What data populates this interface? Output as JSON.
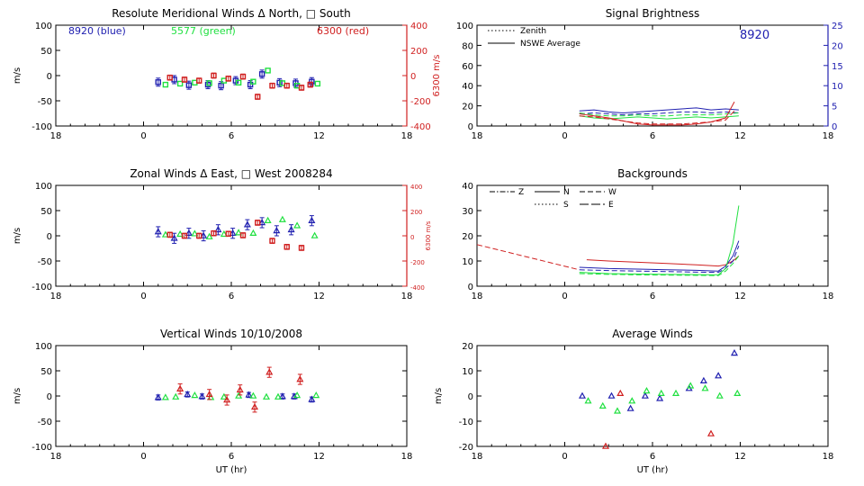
{
  "colors": {
    "blue": "#2020b0",
    "green": "#20e040",
    "red": "#d02020",
    "axis": "#000000"
  },
  "chart_data": [
    {
      "id": "meridional",
      "type": "scatter",
      "title": "Resolute Meridional Winds Δ North, □ South",
      "ylabel": "m/s",
      "y2label": "6300 m/s",
      "xlabel": "",
      "xlim": [
        -6,
        18
      ],
      "ylim": [
        -100,
        100
      ],
      "y2lim": [
        -400,
        400
      ],
      "xticks": [
        "18",
        "0",
        "6",
        "12",
        "18"
      ],
      "yticks": [
        "100",
        "50",
        "0",
        "-50",
        "-100"
      ],
      "y2ticks": [
        "400",
        "200",
        "0",
        "-200",
        "-400"
      ],
      "annotations": [
        {
          "text": "8920 (blue)",
          "color": "blue"
        },
        {
          "text": "5577 (green)",
          "color": "green"
        },
        {
          "text": "6300 (red)",
          "color": "red"
        }
      ],
      "series": [
        {
          "name": "8920 (blue)",
          "color": "blue",
          "marker": "square",
          "err": 8,
          "x": [
            1.0,
            2.1,
            3.1,
            4.4,
            5.3,
            6.3,
            7.3,
            8.1,
            9.3,
            10.4,
            11.5
          ],
          "y": [
            -13,
            -8,
            -19,
            -18,
            -20,
            -10,
            -18,
            3,
            -14,
            -15,
            -12
          ]
        },
        {
          "name": "5577 (green)",
          "color": "green",
          "marker": "square",
          "err": 0,
          "x": [
            1.5,
            2.5,
            3.5,
            4.5,
            5.5,
            6.5,
            7.5,
            8.5,
            9.5,
            10.5,
            11.9
          ],
          "y": [
            -18,
            -16,
            -14,
            -15,
            -10,
            -14,
            -12,
            10,
            -15,
            -20,
            -16
          ]
        },
        {
          "name": "6300 (red)",
          "color": "red",
          "marker": "square",
          "err": 5,
          "x": [
            1.8,
            2.8,
            3.8,
            4.8,
            5.8,
            6.8,
            7.8,
            8.8,
            9.8,
            10.8,
            11.4
          ],
          "y": [
            -4,
            -8,
            -10,
            0,
            -6,
            -2,
            -42,
            -20,
            -20,
            -24,
            -18
          ]
        }
      ]
    },
    {
      "id": "brightness",
      "type": "line",
      "title": "Signal Brightness",
      "ylabel": "",
      "y2label": "",
      "xlabel": "",
      "xlim": [
        -6,
        18
      ],
      "ylim": [
        0,
        100
      ],
      "y2lim": [
        0,
        25
      ],
      "xticks": [
        "18",
        "0",
        "6",
        "12",
        "18"
      ],
      "yticks": [
        "100",
        "80",
        "60",
        "40",
        "20",
        "0"
      ],
      "y2ticks": [
        "25",
        "20",
        "15",
        "10",
        "5",
        "0"
      ],
      "annotations": [
        {
          "text": "8920",
          "color": "blue"
        }
      ],
      "legend": [
        {
          "label": "Zenith",
          "style": "dotted"
        },
        {
          "label": "NSWE Average",
          "style": "solid"
        }
      ],
      "series": [
        {
          "name": "8920",
          "color": "blue",
          "style": "solid",
          "x": [
            1,
            2,
            3,
            4,
            5,
            6,
            7,
            8,
            9,
            10,
            11,
            11.9
          ],
          "y": [
            15,
            16,
            14,
            13,
            14,
            15,
            16,
            17,
            18,
            16,
            17,
            16
          ]
        },
        {
          "name": "",
          "color": "blue",
          "style": "dashed",
          "x": [
            1,
            2,
            3,
            4,
            5,
            6,
            7,
            8,
            9,
            10,
            11,
            11.9
          ],
          "y": [
            12,
            13,
            12,
            11,
            12,
            12,
            13,
            14,
            14,
            13,
            14,
            13
          ]
        },
        {
          "name": "",
          "color": "green",
          "style": "solid",
          "x": [
            1,
            2,
            3,
            4,
            5,
            6,
            7,
            8,
            9,
            10,
            11,
            11.9
          ],
          "y": [
            10,
            8,
            7,
            8,
            9,
            8,
            7,
            8,
            9,
            8,
            9,
            10
          ]
        },
        {
          "name": "",
          "color": "green",
          "style": "dashed",
          "x": [
            1,
            2,
            3,
            4,
            5,
            6,
            7,
            8,
            9,
            10,
            11,
            11.9
          ],
          "y": [
            13,
            11,
            10,
            10,
            11,
            10,
            10,
            11,
            11,
            11,
            12,
            13
          ]
        },
        {
          "name": "",
          "color": "red",
          "style": "solid",
          "x": [
            1,
            2,
            3,
            4,
            5,
            6,
            7,
            8,
            9,
            10,
            11,
            11.6
          ],
          "y": [
            12,
            10,
            8,
            5,
            2,
            1,
            1,
            1,
            2,
            4,
            8,
            24
          ]
        },
        {
          "name": "",
          "color": "red",
          "style": "dashed",
          "x": [
            1,
            2,
            3,
            4,
            5,
            6,
            7,
            8,
            9,
            10,
            11,
            11.6
          ],
          "y": [
            10,
            9,
            7,
            5,
            3,
            2,
            2,
            2,
            3,
            4,
            6,
            15
          ]
        }
      ]
    },
    {
      "id": "zonal",
      "type": "scatter",
      "title": "Zonal Winds Δ East, □ West 2008284",
      "ylabel": "m/s",
      "y2label": "6300 m/s",
      "xlabel": "",
      "xlim": [
        -6,
        18
      ],
      "ylim": [
        -100,
        100
      ],
      "y2lim": [
        -400,
        400
      ],
      "xticks": [
        "18",
        "0",
        "6",
        "12",
        "18"
      ],
      "yticks": [
        "100",
        "50",
        "0",
        "-50",
        "-100"
      ],
      "y2ticks": [
        "400",
        "200",
        "0",
        "-200",
        "-400"
      ],
      "annotations": [],
      "series": [
        {
          "name": "",
          "color": "blue",
          "marker": "triangle",
          "err": 10,
          "x": [
            1.0,
            2.1,
            3.1,
            4.1,
            5.1,
            6.1,
            7.1,
            8.1,
            9.1,
            10.1,
            11.5
          ],
          "y": [
            8,
            -5,
            5,
            0,
            12,
            5,
            22,
            26,
            10,
            12,
            30
          ]
        },
        {
          "name": "",
          "color": "green",
          "marker": "triangle",
          "err": 0,
          "x": [
            1.5,
            2.5,
            3.5,
            4.5,
            5.5,
            6.5,
            7.5,
            8.5,
            9.5,
            10.5,
            11.7
          ],
          "y": [
            2,
            3,
            4,
            -2,
            3,
            6,
            5,
            30,
            32,
            20,
            0
          ]
        },
        {
          "name": "",
          "color": "red",
          "marker": "square",
          "err": 5,
          "x": [
            1.8,
            2.8,
            3.8,
            4.8,
            5.8,
            6.8,
            7.8,
            8.8,
            9.8,
            10.8
          ],
          "y": [
            2,
            0,
            0,
            5,
            4,
            1,
            26,
            -10,
            -22,
            -24
          ]
        }
      ]
    },
    {
      "id": "backgrounds",
      "type": "line",
      "title": "Backgrounds",
      "ylabel": "",
      "y2label": "",
      "xlabel": "",
      "xlim": [
        -6,
        18
      ],
      "ylim": [
        0,
        40
      ],
      "y2lim": null,
      "xticks": [
        "18",
        "0",
        "6",
        "12",
        "18"
      ],
      "yticks": [
        "40",
        "30",
        "20",
        "10",
        "0"
      ],
      "y2ticks": [],
      "annotations": [],
      "legend": [
        {
          "label": "Z",
          "style": "dashdot"
        },
        {
          "label": "N",
          "style": "solid"
        },
        {
          "label": "W",
          "style": "dashed"
        },
        {
          "label": "S",
          "style": "dotted"
        },
        {
          "label": "E",
          "style": "longdash"
        }
      ],
      "series": [
        {
          "name": "",
          "color": "red",
          "style": "dashed",
          "x": [
            -6,
            1
          ],
          "y": [
            16.5,
            6.5
          ]
        },
        {
          "name": "",
          "color": "red",
          "style": "solid",
          "x": [
            1.5,
            3,
            5,
            7,
            9,
            10.5,
            11,
            11.5,
            11.9
          ],
          "y": [
            10.5,
            10,
            9.5,
            9,
            8.5,
            8,
            8.5,
            10,
            12
          ]
        },
        {
          "name": "",
          "color": "blue",
          "style": "solid",
          "x": [
            1,
            3,
            5,
            7,
            9,
            10.5,
            11,
            11.5,
            11.9
          ],
          "y": [
            7.5,
            7,
            6.8,
            6.5,
            6.3,
            6,
            8,
            12,
            18
          ]
        },
        {
          "name": "",
          "color": "blue",
          "style": "dashed",
          "x": [
            1,
            3,
            5,
            7,
            9,
            10.5,
            11,
            11.5,
            11.9
          ],
          "y": [
            6.5,
            6.2,
            6,
            5.8,
            5.6,
            5.5,
            7,
            10,
            16
          ]
        },
        {
          "name": "",
          "color": "green",
          "style": "solid",
          "x": [
            1,
            3,
            5,
            7,
            9,
            10.5,
            11,
            11.5,
            11.9
          ],
          "y": [
            5.5,
            5,
            4.8,
            4.7,
            4.6,
            4.5,
            7,
            17,
            32
          ]
        },
        {
          "name": "",
          "color": "green",
          "style": "dashed",
          "x": [
            1,
            3,
            5,
            7,
            9,
            10.5,
            11,
            11.5,
            11.9
          ],
          "y": [
            5,
            4.7,
            4.5,
            4.4,
            4.3,
            4.2,
            6,
            9,
            12
          ]
        }
      ]
    },
    {
      "id": "vertical",
      "type": "scatter",
      "title": "Vertical Winds 10/10/2008",
      "ylabel": "m/s",
      "y2label": "",
      "xlabel": "UT (hr)",
      "xlim": [
        -6,
        18
      ],
      "ylim": [
        -100,
        100
      ],
      "y2lim": null,
      "xticks": [
        "18",
        "0",
        "6",
        "12",
        "18"
      ],
      "yticks": [
        "100",
        "50",
        "0",
        "-50",
        "-100"
      ],
      "y2ticks": [],
      "annotations": [],
      "series": [
        {
          "name": "",
          "color": "blue",
          "marker": "triangle",
          "err": 5,
          "x": [
            1.0,
            3.0,
            4.0,
            7.2,
            9.5,
            10.3,
            11.5
          ],
          "y": [
            -3,
            3,
            -1,
            2,
            -1,
            -1,
            -7
          ]
        },
        {
          "name": "",
          "color": "green",
          "marker": "triangle",
          "err": 0,
          "x": [
            1.5,
            2.2,
            3.5,
            4.6,
            5.5,
            6.5,
            7.5,
            8.4,
            9.2,
            10.5,
            11.8
          ],
          "y": [
            -3,
            -2,
            1,
            -3,
            -2,
            0,
            0,
            -2,
            -2,
            1,
            1
          ]
        },
        {
          "name": "",
          "color": "red",
          "marker": "triangle",
          "err": 10,
          "x": [
            2.5,
            4.5,
            5.7,
            6.6,
            7.6,
            8.6,
            10.7
          ],
          "y": [
            14,
            3,
            -8,
            12,
            -22,
            47,
            33
          ]
        }
      ]
    },
    {
      "id": "average",
      "type": "scatter",
      "title": "Average Winds",
      "ylabel": "m/s",
      "y2label": "",
      "xlabel": "UT (hr)",
      "xlim": [
        -6,
        18
      ],
      "ylim": [
        -20,
        20
      ],
      "y2lim": null,
      "xticks": [
        "18",
        "0",
        "6",
        "12",
        "18"
      ],
      "yticks": [
        "20",
        "10",
        "0",
        "-10",
        "-20"
      ],
      "y2ticks": [],
      "annotations": [],
      "series": [
        {
          "name": "",
          "color": "blue",
          "marker": "triangle",
          "err": 0,
          "x": [
            1.2,
            3.2,
            4.5,
            5.5,
            6.5,
            8.5,
            9.5,
            10.5,
            11.6
          ],
          "y": [
            0,
            0,
            -5,
            0,
            -1,
            3,
            6,
            8,
            17
          ]
        },
        {
          "name": "",
          "color": "green",
          "marker": "triangle",
          "err": 0,
          "x": [
            1.6,
            2.6,
            3.6,
            4.6,
            5.6,
            6.6,
            7.6,
            8.6,
            9.6,
            10.6,
            11.8
          ],
          "y": [
            -2,
            -4,
            -6,
            -2,
            2,
            1,
            1,
            4,
            3,
            0,
            1
          ]
        },
        {
          "name": "",
          "color": "red",
          "marker": "triangle",
          "err": 0,
          "x": [
            2.8,
            3.8,
            10.0
          ],
          "y": [
            -20,
            1,
            -15
          ]
        }
      ]
    }
  ]
}
